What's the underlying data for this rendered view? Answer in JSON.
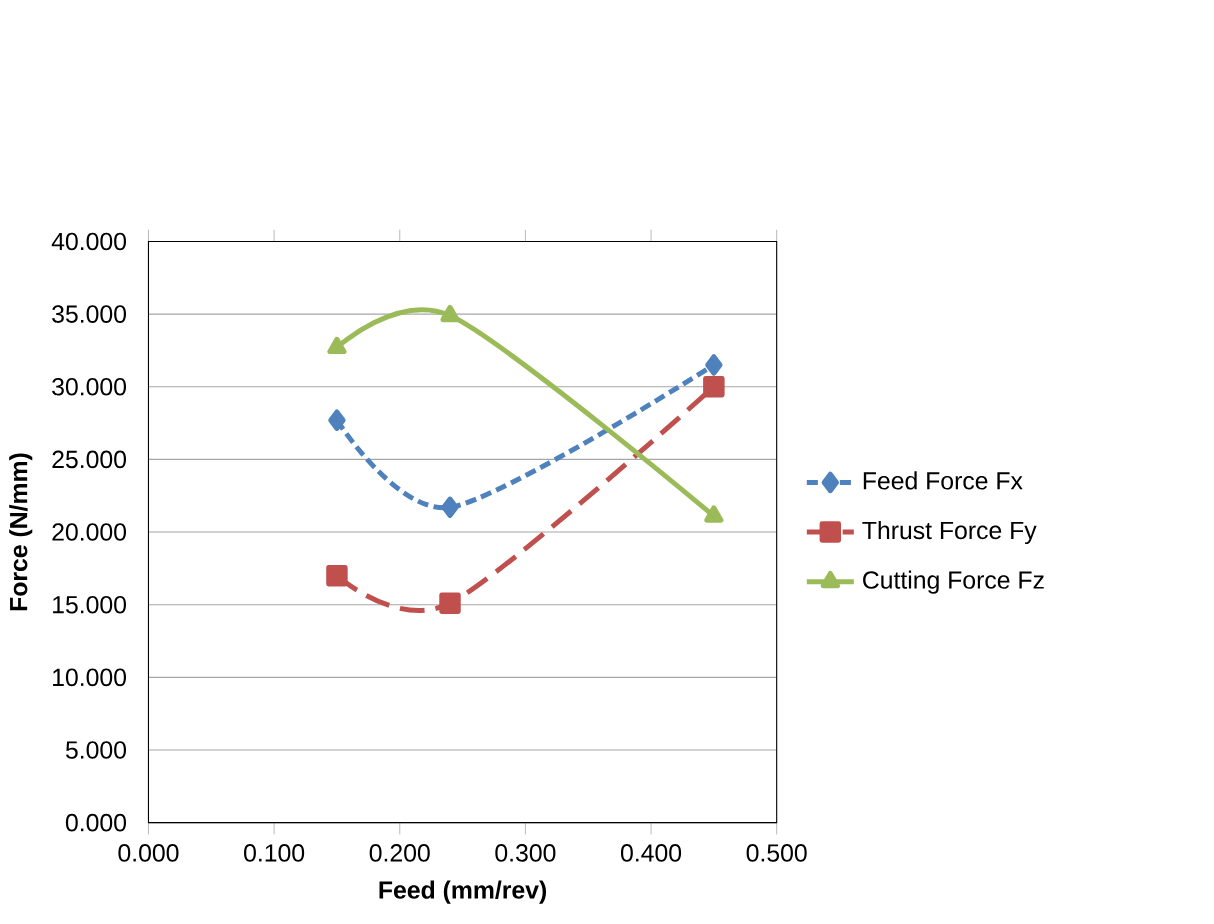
{
  "chart_data": {
    "type": "line",
    "xlabel": "Feed  (mm/rev)",
    "ylabel": "Force  (N/mm)",
    "x": [
      0.15,
      0.24,
      0.45
    ],
    "series": [
      {
        "name": "Feed Force Fx",
        "color": "#4f81bd",
        "values": [
          27.7,
          21.7,
          31.5
        ],
        "marker": "diamond",
        "line_style": "dashed"
      },
      {
        "name": "Thrust Force Fy",
        "color": "#c0504d",
        "values": [
          17.0,
          15.1,
          30.0
        ],
        "marker": "square",
        "line_style": "long dashed"
      },
      {
        "name": "Cutting Force Fz",
        "color": "#9bbb59",
        "values": [
          32.7,
          34.9,
          21.1
        ],
        "marker": "triangle",
        "line_style": "solid"
      }
    ],
    "xlim": [
      0,
      0.5
    ],
    "xticks": [
      {
        "value": 0,
        "label": "0.000"
      },
      {
        "value": 0.1,
        "label": "0.100"
      },
      {
        "value": 0.2,
        "label": "0.200"
      },
      {
        "value": 0.3,
        "label": "0.300"
      },
      {
        "value": 0.4,
        "label": "0.400"
      },
      {
        "value": 0.5,
        "label": "0.500"
      }
    ],
    "ylim": [
      0,
      40
    ],
    "yticks": [
      {
        "value": 0,
        "label": "0.000"
      },
      {
        "value": 5,
        "label": "5.000"
      },
      {
        "value": 10,
        "label": "10.000"
      },
      {
        "value": 15,
        "label": "15.000"
      },
      {
        "value": 20,
        "label": "20.000"
      },
      {
        "value": 25,
        "label": "25.000"
      },
      {
        "value": 30,
        "label": "30.000"
      },
      {
        "value": 35,
        "label": "35.000"
      },
      {
        "value": 40,
        "label": "40.000"
      }
    ],
    "grid": "y",
    "legend": "right"
  }
}
